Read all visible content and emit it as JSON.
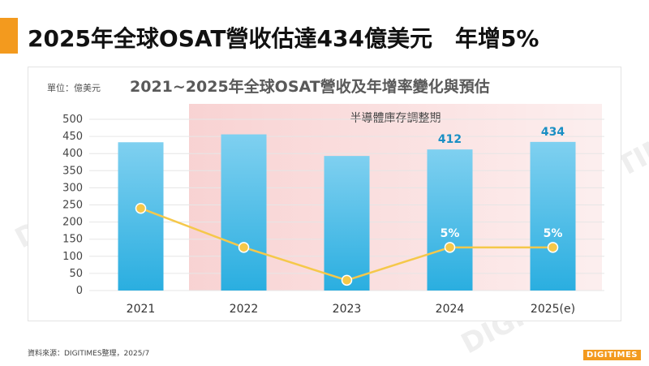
{
  "slide": {
    "title": "2025年全球OSAT營收估達434億美元　年增5%",
    "source": "資料來源：DIGITIMES整理，2025/7",
    "brand": "DIGITIMES"
  },
  "chart_data": {
    "type": "bar",
    "title": "2021~2025年全球OSAT營收及年增率變化與預估",
    "unit_label": "單位：億美元",
    "categories": [
      "2021",
      "2022",
      "2023",
      "2024",
      "2025(e)"
    ],
    "series": [
      {
        "type": "bar",
        "values": [
          433,
          456,
          393,
          412,
          434
        ],
        "color": "#2aaee0"
      },
      {
        "type": "line",
        "values": [
          240,
          126,
          30,
          126,
          126
        ],
        "color": "#f5c84a",
        "marker_color": "#f5c84a"
      }
    ],
    "bar_data_labels": [
      "",
      "",
      "",
      "412",
      "434"
    ],
    "line_data_labels": [
      "",
      "",
      "",
      "5%",
      "5%"
    ],
    "ylim": [
      0,
      500
    ],
    "yticks": [
      0,
      50,
      100,
      150,
      200,
      250,
      300,
      350,
      400,
      450,
      500
    ],
    "grid": true,
    "shaded_region": {
      "label": "半導體庫存調整期",
      "from_category": "2022",
      "to_category": "2025(e)",
      "color": "#f8d0d0"
    },
    "label_color": "#1a8fc4"
  }
}
